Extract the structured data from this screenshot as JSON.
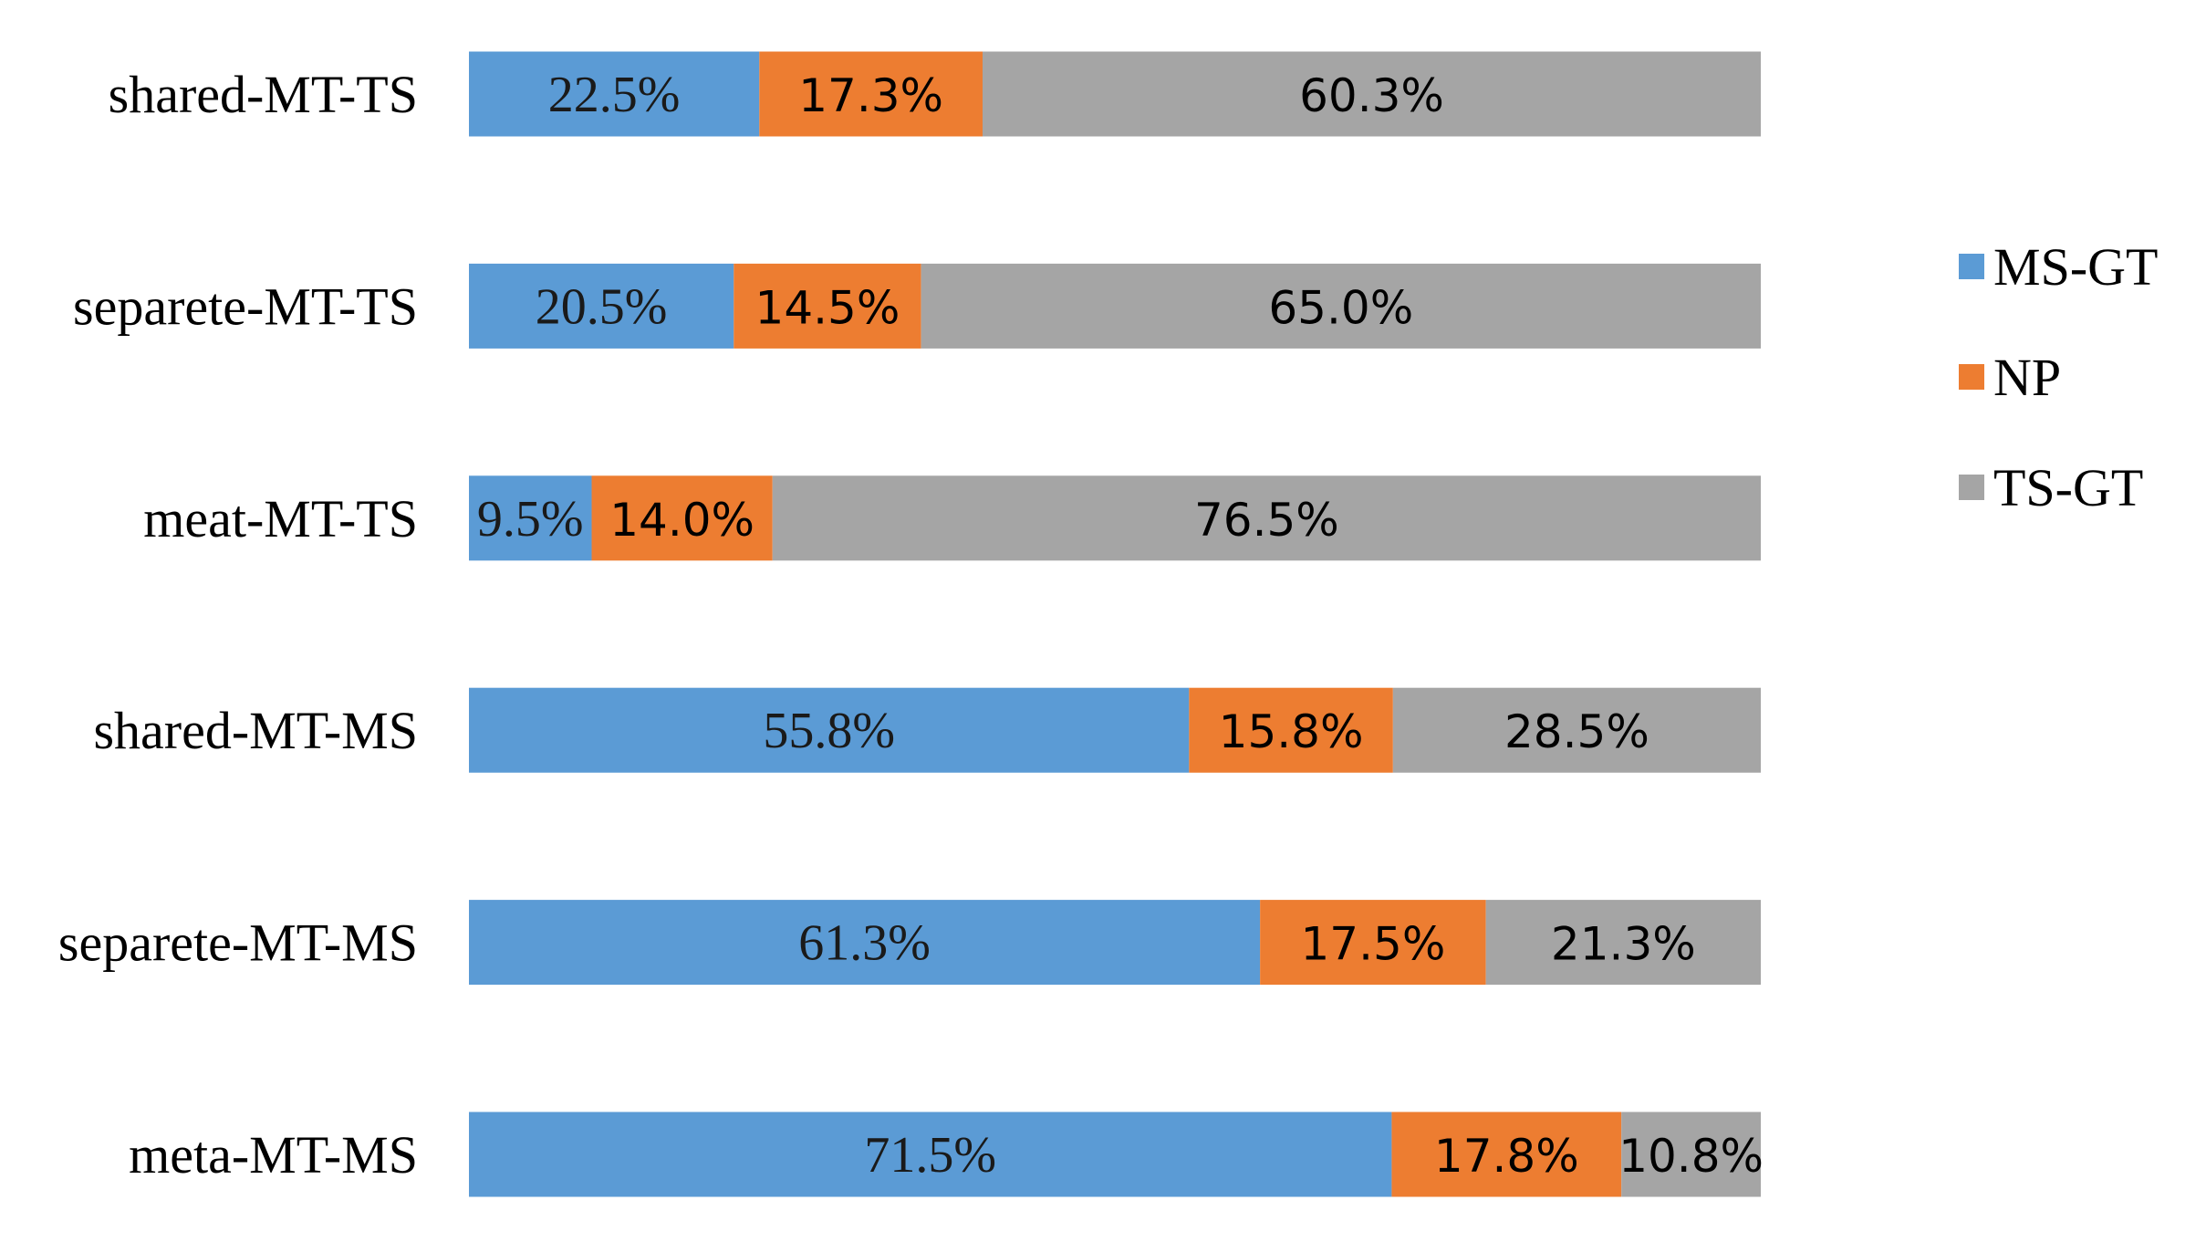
{
  "chart_data": {
    "type": "bar",
    "orientation": "horizontal",
    "stacked": "percent",
    "title": "",
    "xlabel": "",
    "ylabel": "",
    "grid": false,
    "legend_position": "right",
    "categories": [
      "shared-MT-TS",
      "separete-MT-TS",
      "meat-MT-TS",
      "shared-MT-MS",
      "separete-MT-MS",
      "meta-MT-MS"
    ],
    "series": [
      {
        "name": "MS-GT",
        "color": "#5B9BD5",
        "values": [
          22.5,
          20.5,
          9.5,
          55.8,
          61.3,
          71.5
        ],
        "labels": [
          "22.5%",
          "20.5%",
          "9.5%",
          "55.8%",
          "61.3%",
          "71.5%"
        ]
      },
      {
        "name": "NP",
        "color": "#ED7D31",
        "values": [
          17.3,
          14.5,
          14.0,
          15.8,
          17.5,
          17.8
        ],
        "labels": [
          "17.3%",
          "14.5%",
          "14.0%",
          "15.8%",
          "17.5%",
          "17.8%"
        ]
      },
      {
        "name": "TS-GT",
        "color": "#A5A5A5",
        "values": [
          60.3,
          65.0,
          76.5,
          28.5,
          21.3,
          10.8
        ],
        "labels": [
          "60.3%",
          "65.0%",
          "76.5%",
          "28.5%",
          "21.3%",
          "10.8%"
        ]
      }
    ]
  }
}
